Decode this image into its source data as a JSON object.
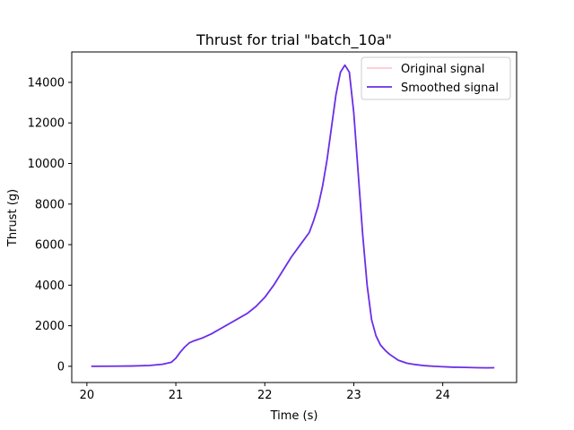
{
  "chart_data": {
    "type": "line",
    "title": "Thrust for trial \"batch_10a\"",
    "xlabel": "Time (s)",
    "ylabel": "Thrust (g)",
    "xlim": [
      19.83,
      24.83
    ],
    "ylim": [
      -800,
      15500
    ],
    "xticks": [
      20,
      21,
      22,
      23,
      24
    ],
    "yticks": [
      0,
      2000,
      4000,
      6000,
      8000,
      10000,
      12000,
      14000
    ],
    "legend_position": "top-right",
    "grid": false,
    "series": [
      {
        "name": "Original signal",
        "color": "#ffc0cb",
        "x": [
          20.05,
          20.3,
          20.5,
          20.7,
          20.85,
          20.95,
          21.0,
          21.05,
          21.1,
          21.15,
          21.2,
          21.3,
          21.4,
          21.5,
          21.6,
          21.7,
          21.8,
          21.9,
          22.0,
          22.1,
          22.2,
          22.3,
          22.4,
          22.5,
          22.55,
          22.6,
          22.65,
          22.7,
          22.75,
          22.8,
          22.85,
          22.9,
          22.95,
          23.0,
          23.05,
          23.1,
          23.15,
          23.2,
          23.25,
          23.3,
          23.35,
          23.4,
          23.5,
          23.6,
          23.7,
          23.8,
          23.9,
          24.0,
          24.1,
          24.2,
          24.3,
          24.4,
          24.5,
          24.58
        ],
        "y": [
          0,
          5,
          15,
          40,
          100,
          200,
          400,
          700,
          950,
          1150,
          1250,
          1400,
          1600,
          1850,
          2100,
          2350,
          2600,
          2950,
          3400,
          4000,
          4700,
          5400,
          6000,
          6600,
          7200,
          7900,
          8900,
          10200,
          11800,
          13400,
          14500,
          14850,
          14500,
          12500,
          9500,
          6500,
          4000,
          2300,
          1500,
          1050,
          800,
          600,
          300,
          150,
          80,
          30,
          0,
          -20,
          -40,
          -50,
          -60,
          -70,
          -75,
          -70
        ]
      },
      {
        "name": "Smoothed signal",
        "color": "#6a2ee8",
        "x": [
          20.05,
          20.3,
          20.5,
          20.7,
          20.85,
          20.95,
          21.0,
          21.05,
          21.1,
          21.15,
          21.2,
          21.3,
          21.4,
          21.5,
          21.6,
          21.7,
          21.8,
          21.9,
          22.0,
          22.1,
          22.2,
          22.3,
          22.4,
          22.5,
          22.55,
          22.6,
          22.65,
          22.7,
          22.75,
          22.8,
          22.85,
          22.9,
          22.95,
          23.0,
          23.05,
          23.1,
          23.15,
          23.2,
          23.25,
          23.3,
          23.35,
          23.4,
          23.5,
          23.6,
          23.7,
          23.8,
          23.9,
          24.0,
          24.1,
          24.2,
          24.3,
          24.4,
          24.5,
          24.58
        ],
        "y": [
          0,
          5,
          15,
          40,
          100,
          200,
          400,
          700,
          950,
          1150,
          1250,
          1400,
          1600,
          1850,
          2100,
          2350,
          2600,
          2950,
          3400,
          4000,
          4700,
          5400,
          6000,
          6600,
          7200,
          7900,
          8900,
          10200,
          11800,
          13400,
          14500,
          14850,
          14500,
          12500,
          9500,
          6500,
          4000,
          2300,
          1500,
          1050,
          800,
          600,
          300,
          150,
          80,
          30,
          0,
          -20,
          -40,
          -50,
          -60,
          -70,
          -75,
          -70
        ]
      }
    ]
  }
}
